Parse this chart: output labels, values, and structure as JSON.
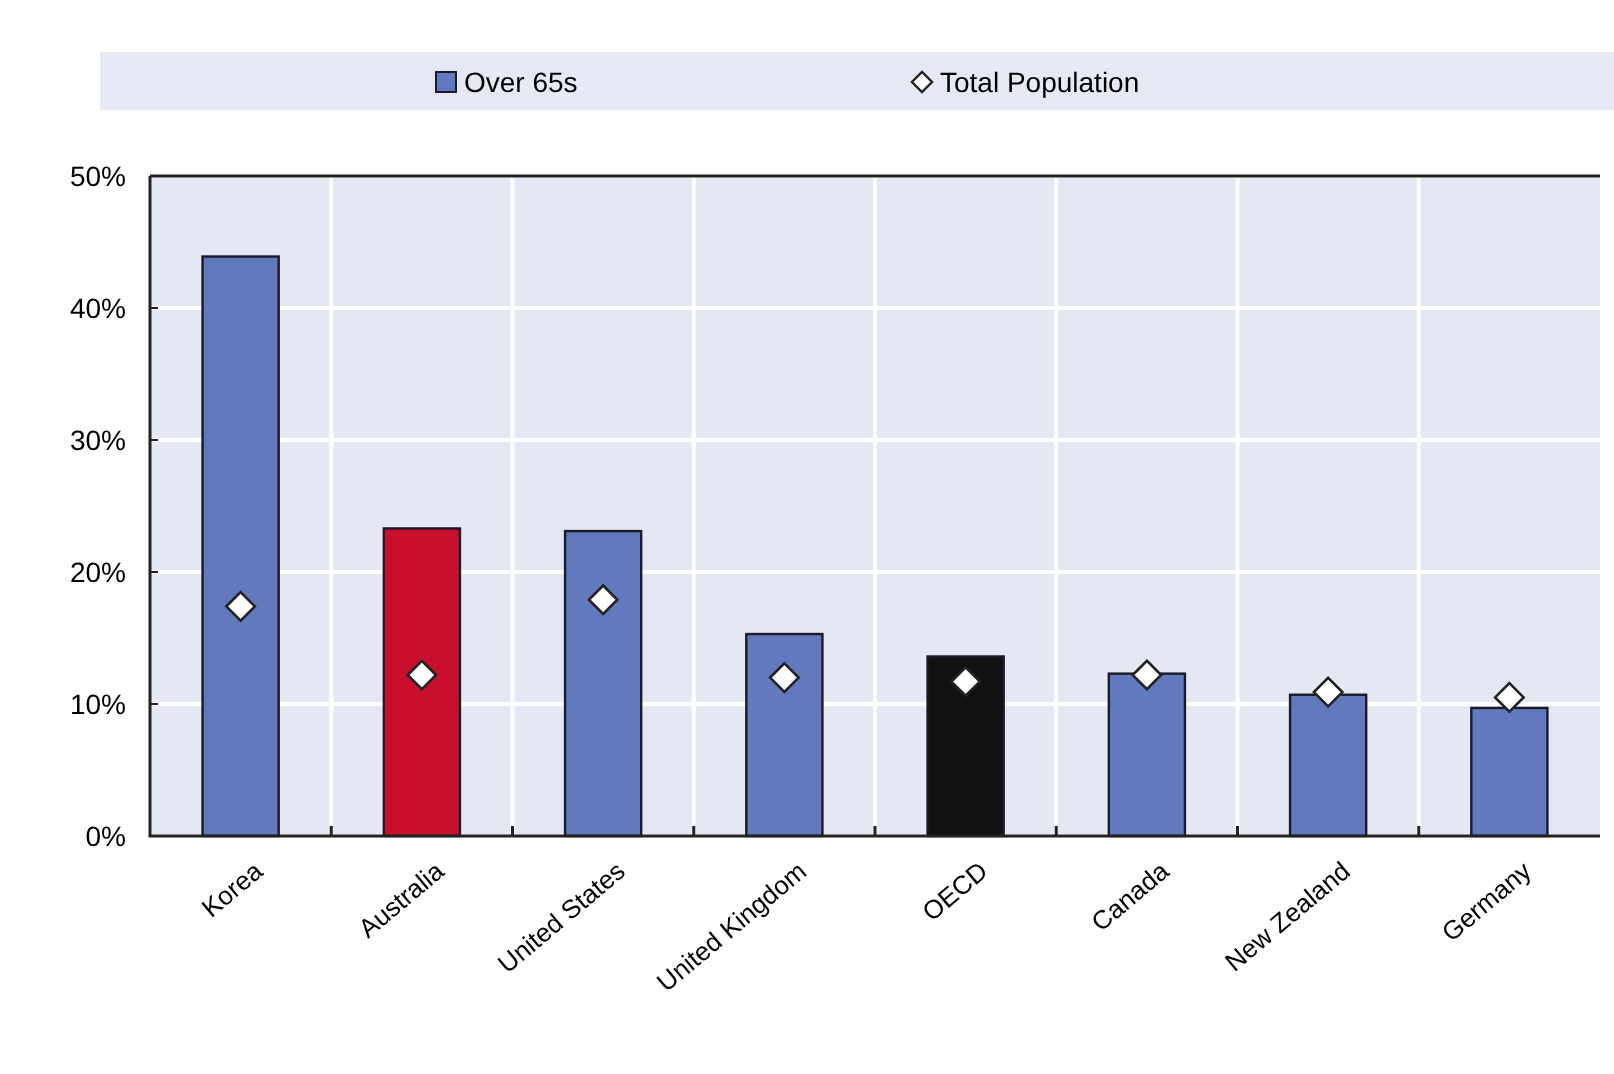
{
  "chart_data": {
    "type": "bar",
    "categories": [
      "Korea",
      "Australia",
      "United States",
      "United Kingdom",
      "OECD",
      "Canada",
      "New Zealand",
      "Germany"
    ],
    "series": [
      {
        "name": "Over 65s",
        "color": "#6379be",
        "colors": [
          "#6379be",
          "#c8102e",
          "#6379be",
          "#6379be",
          "#111111",
          "#6379be",
          "#6379be",
          "#6379be"
        ],
        "values": [
          43.9,
          23.3,
          23.1,
          15.3,
          13.6,
          12.3,
          10.7,
          9.7
        ]
      },
      {
        "name": "Total Population",
        "type": "scatter",
        "color": "#ffffff",
        "marker": "diamond",
        "values": [
          17.4,
          12.2,
          17.9,
          12.0,
          11.7,
          12.2,
          10.9,
          10.5
        ]
      }
    ],
    "ylim": [
      0,
      50
    ],
    "yticks": [
      {
        "value": 0,
        "label": "0%"
      },
      {
        "value": 10,
        "label": "10%"
      },
      {
        "value": 20,
        "label": "20%"
      },
      {
        "value": 30,
        "label": "30%"
      },
      {
        "value": 40,
        "label": "40%"
      },
      {
        "value": 50,
        "label": "50%"
      }
    ],
    "grid": true,
    "legend": "top"
  }
}
